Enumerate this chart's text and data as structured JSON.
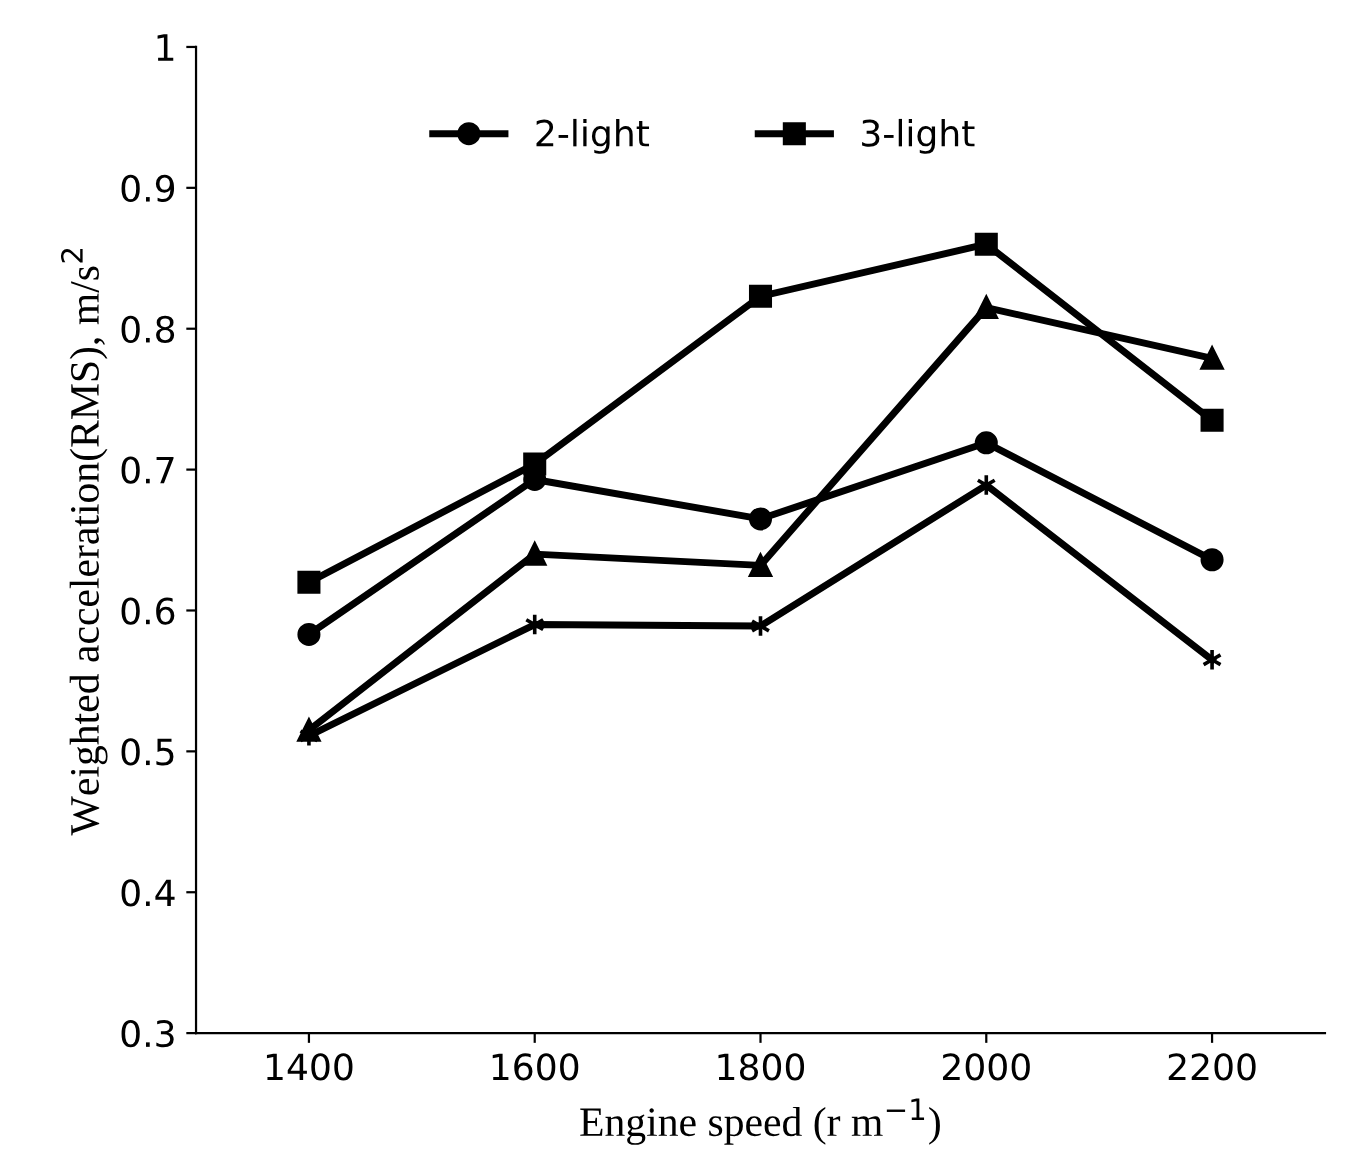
{
  "chart_data": {
    "type": "line",
    "xlabel": "Engine speed (r m$^{−1}$)",
    "ylabel": "Weighted acceleration(RMS), m/s$^{2}$",
    "x": [
      1400,
      1600,
      1800,
      2000,
      2200
    ],
    "series": [
      {
        "name": "2-light",
        "color": "#000000",
        "marker": "circle",
        "values": [
          0.583,
          0.693,
          0.665,
          0.719,
          0.636
        ]
      },
      {
        "name": "3-light",
        "color": "#000000",
        "marker": "square",
        "values": [
          0.62,
          0.704,
          0.823,
          0.86,
          0.735
        ]
      },
      {
        "color": "#000000",
        "marker": "triangle",
        "values": [
          0.515,
          0.64,
          0.632,
          0.815,
          0.779
        ]
      },
      {
        "color": "#000000",
        "marker": "cross",
        "values": [
          0.511,
          0.59,
          0.589,
          0.689,
          0.565
        ]
      }
    ],
    "xlim": [
      1300,
      2300
    ],
    "xticks": [
      1400,
      1600,
      1800,
      2000,
      2200
    ],
    "ylim": [
      0.3,
      1.0
    ],
    "yticks": [
      0.3,
      0.4,
      0.5,
      0.6,
      0.7,
      0.8,
      0.9,
      {
        "value": 1.0,
        "label": "1"
      }
    ],
    "grid": false,
    "legend": "top",
    "line_style": "solid"
  }
}
